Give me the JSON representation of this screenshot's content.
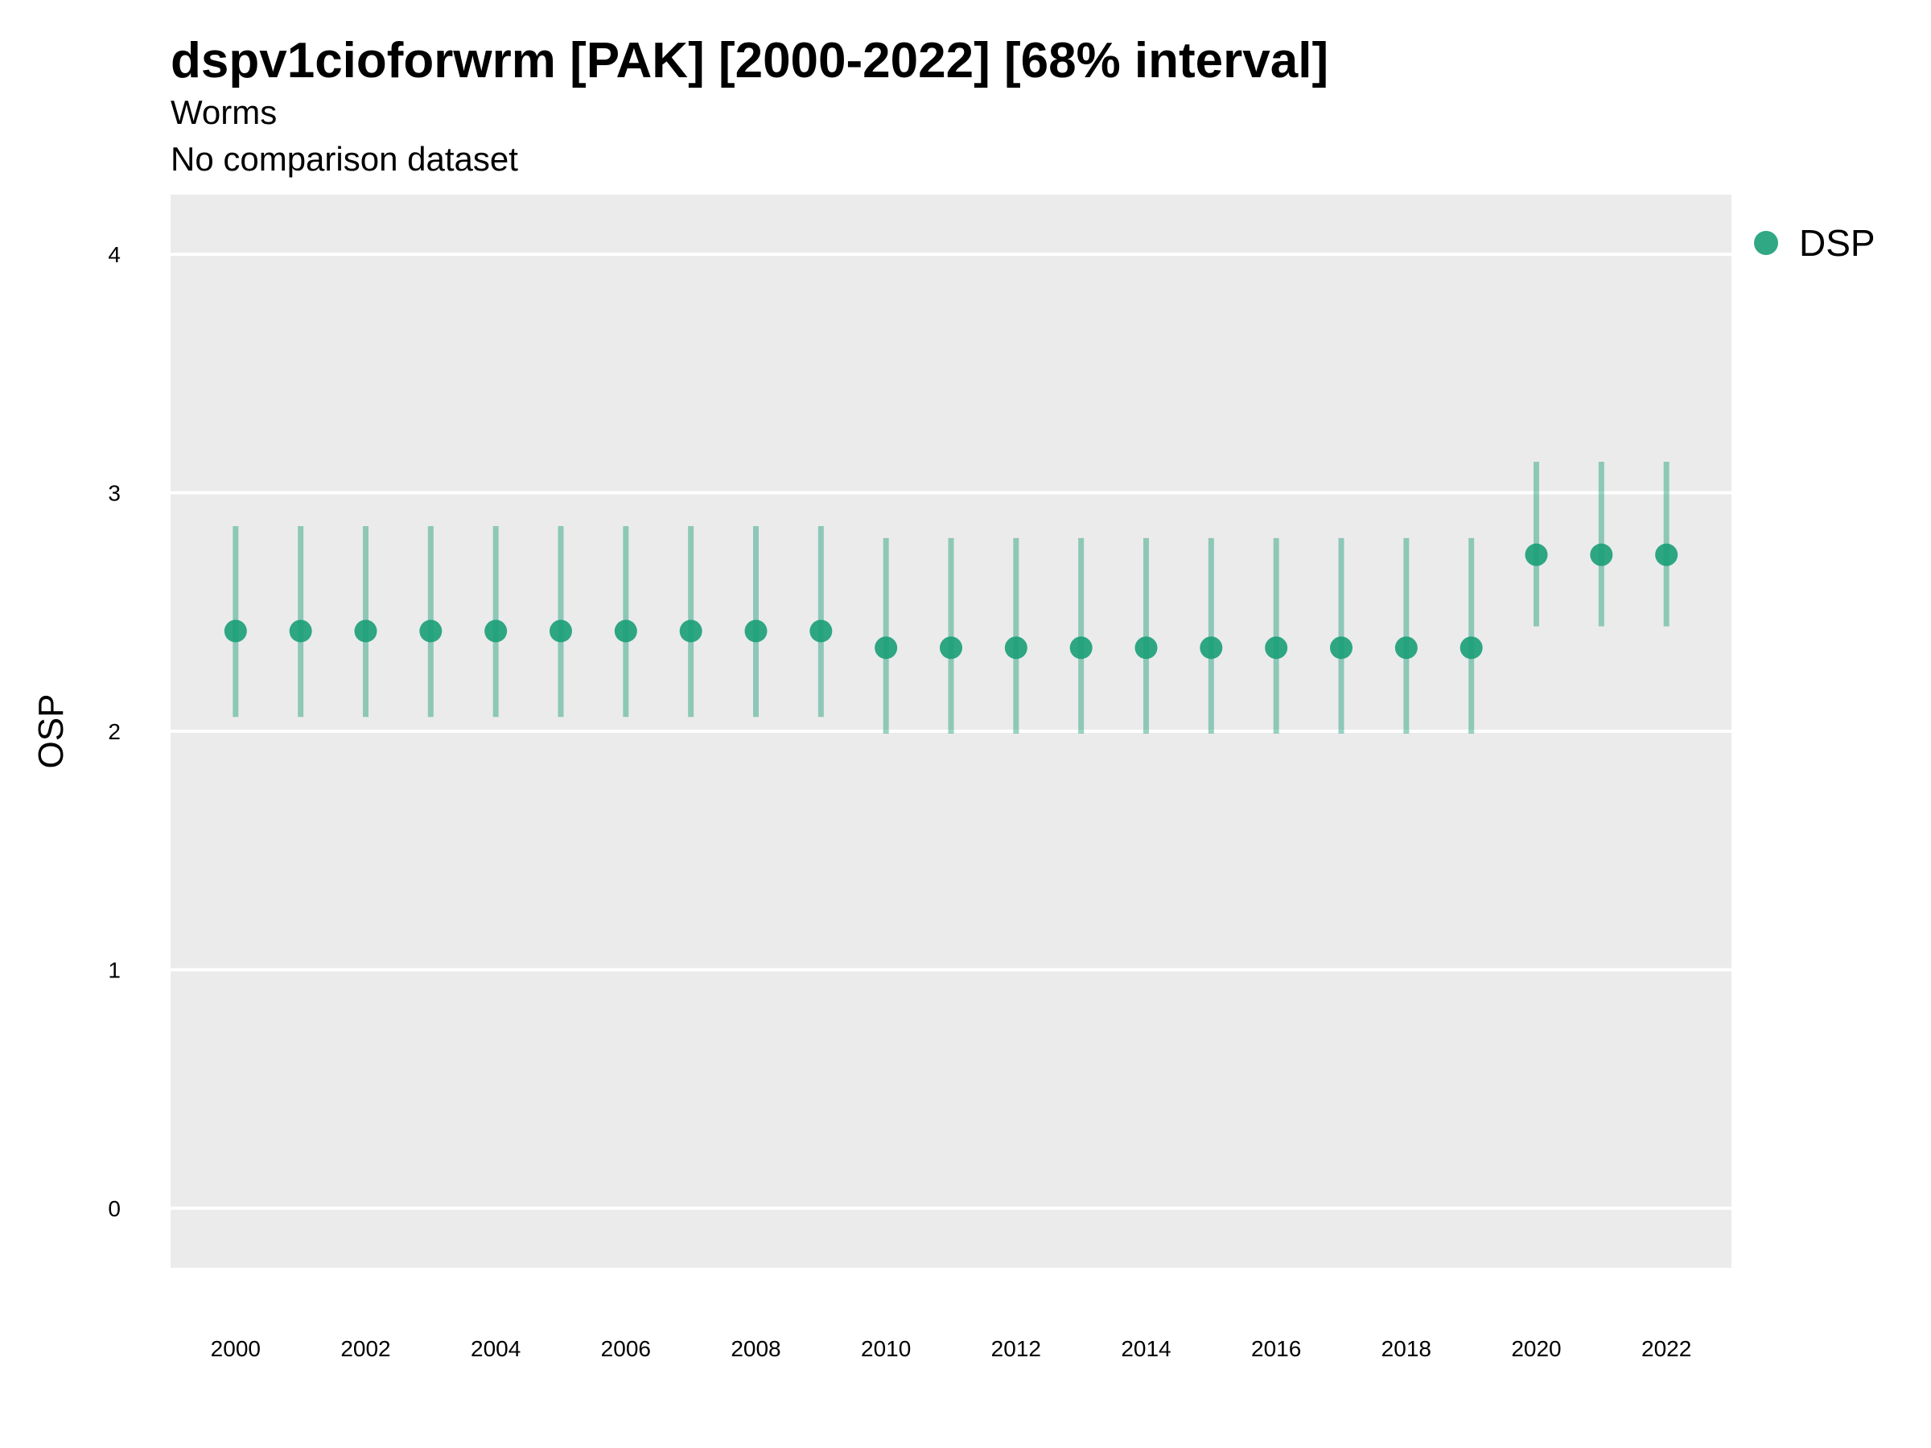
{
  "chart_data": {
    "type": "scatter",
    "title": "dspv1cioforwrm [PAK] [2000-2022] [68% interval]",
    "subtitle": "Worms",
    "caption": "No comparison dataset",
    "xlabel": "",
    "ylabel": "OSP",
    "xlim": [
      1999,
      2023
    ],
    "ylim": [
      -0.25,
      4.25
    ],
    "x_ticks": [
      2000,
      2002,
      2004,
      2006,
      2008,
      2010,
      2012,
      2014,
      2016,
      2018,
      2020,
      2022
    ],
    "y_ticks": [
      0,
      1,
      2,
      3,
      4
    ],
    "grid": true,
    "legend_position": "top-right",
    "series": [
      {
        "name": "DSP",
        "color": "#1a9e77",
        "x": [
          2000,
          2001,
          2002,
          2003,
          2004,
          2005,
          2006,
          2007,
          2008,
          2009,
          2010,
          2011,
          2012,
          2013,
          2014,
          2015,
          2016,
          2017,
          2018,
          2019,
          2020,
          2021,
          2022
        ],
        "y": [
          2.42,
          2.42,
          2.42,
          2.42,
          2.42,
          2.42,
          2.42,
          2.42,
          2.42,
          2.42,
          2.35,
          2.35,
          2.35,
          2.35,
          2.35,
          2.35,
          2.35,
          2.35,
          2.35,
          2.35,
          2.74,
          2.74,
          2.74
        ],
        "lower": [
          2.06,
          2.06,
          2.06,
          2.06,
          2.06,
          2.06,
          2.06,
          2.06,
          2.06,
          2.06,
          1.99,
          1.99,
          1.99,
          1.99,
          1.99,
          1.99,
          1.99,
          1.99,
          1.99,
          1.99,
          2.44,
          2.44,
          2.44
        ],
        "upper": [
          2.86,
          2.86,
          2.86,
          2.86,
          2.86,
          2.86,
          2.86,
          2.86,
          2.86,
          2.86,
          2.81,
          2.81,
          2.81,
          2.81,
          2.81,
          2.81,
          2.81,
          2.81,
          2.81,
          2.81,
          3.13,
          3.13,
          3.13
        ]
      }
    ]
  },
  "colors": {
    "panel_background": "#ebebeb",
    "gridline": "#ffffff",
    "point": "#1a9e77"
  }
}
